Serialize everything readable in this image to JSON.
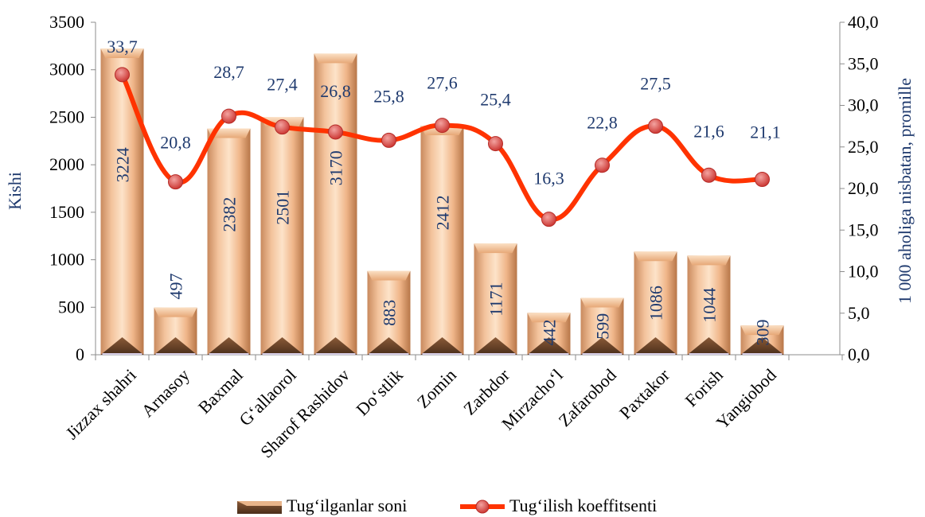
{
  "chart_data": {
    "type": "bar",
    "categories": [
      "Jizzax shahri",
      "Arnasoy",
      "Baxmal",
      "G‘allaorol",
      "Sharof Rashidov",
      "Do‘stlik",
      "Zomin",
      "Zarbdor",
      "Mirzacho‘l",
      "Zafarobod",
      "Paxtakor",
      "Forish",
      "Yangiobod"
    ],
    "series": [
      {
        "name": "Tug‘ilganlar soni",
        "type": "bar",
        "axis": "left",
        "values": [
          3224,
          497,
          2382,
          2501,
          3170,
          883,
          2412,
          1171,
          442,
          599,
          1086,
          1044,
          309
        ],
        "labels": [
          "3224",
          "497",
          "2382",
          "2501",
          "3170",
          "883",
          "2412",
          "1171",
          "442",
          "599",
          "1086",
          "1044",
          "309"
        ],
        "color": "#f0b890"
      },
      {
        "name": "Tug‘ilish koeffitsenti",
        "type": "line",
        "axis": "right",
        "values": [
          33.7,
          20.8,
          28.7,
          27.4,
          26.8,
          25.8,
          27.6,
          25.4,
          16.3,
          22.8,
          27.5,
          21.6,
          21.1
        ],
        "labels": [
          "33,7",
          "20,8",
          "28,7",
          "27,4",
          "26,8",
          "25,8",
          "27,6",
          "25,4",
          "16,3",
          "22,8",
          "27,5",
          "21,6",
          "21,1"
        ],
        "color": "#ff3300",
        "marker_color": "#d9534f"
      }
    ],
    "ylabel": "Kishi",
    "y2label": "1 000 aholiga nisbatan, promille",
    "ylim": [
      0,
      3500
    ],
    "y2lim": [
      0,
      40
    ],
    "yticks": [
      "0",
      "500",
      "1000",
      "1500",
      "2000",
      "2500",
      "3000",
      "3500"
    ],
    "y2ticks": [
      "0,0",
      "5,0",
      "10,0",
      "15,0",
      "20,0",
      "25,0",
      "30,0",
      "35,0",
      "40,0"
    ],
    "grid": false,
    "legend_position": "bottom"
  }
}
